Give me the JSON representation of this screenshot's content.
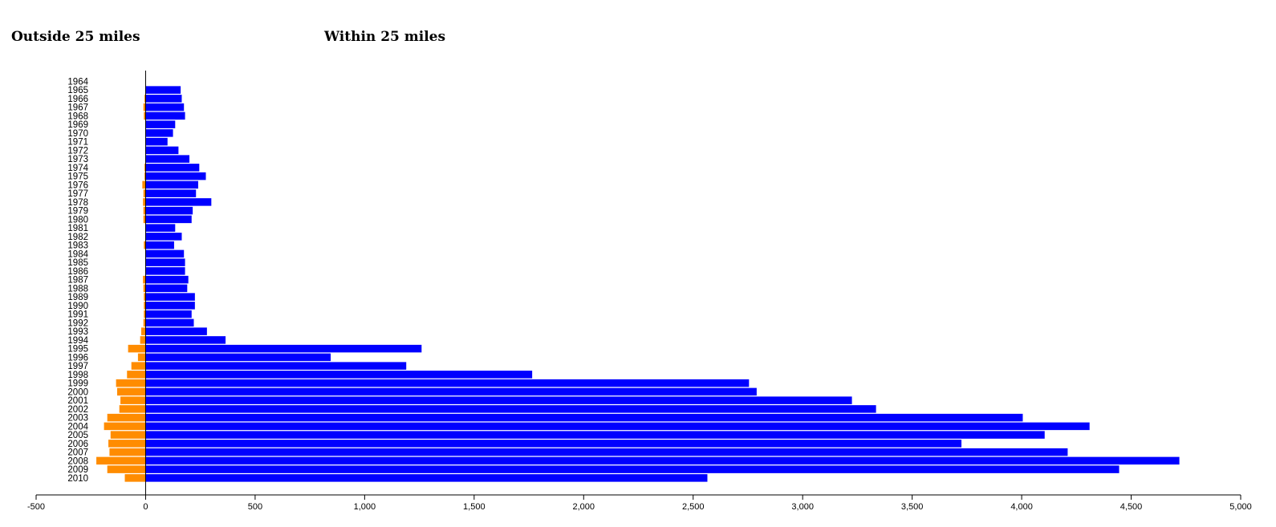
{
  "headings": {
    "left": "Outside 25 miles",
    "right": "Within 25 miles"
  },
  "chart_data": {
    "type": "bar",
    "orientation": "horizontal",
    "categories": [
      "1964",
      "1965",
      "1966",
      "1967",
      "1968",
      "1969",
      "1970",
      "1971",
      "1972",
      "1973",
      "1974",
      "1975",
      "1976",
      "1977",
      "1978",
      "1979",
      "1980",
      "1981",
      "1982",
      "1983",
      "1984",
      "1985",
      "1986",
      "1987",
      "1988",
      "1989",
      "1990",
      "1991",
      "1992",
      "1993",
      "1994",
      "1995",
      "1996",
      "1997",
      "1998",
      "1999",
      "2000",
      "2001",
      "2002",
      "2003",
      "2004",
      "2005",
      "2006",
      "2007",
      "2008",
      "2009",
      "2010"
    ],
    "series": [
      {
        "name": "Outside 25 miles",
        "color": "#ff8c00",
        "values": [
          0,
          0,
          -5,
          -10,
          -8,
          0,
          0,
          0,
          0,
          0,
          -5,
          -5,
          -15,
          -10,
          -12,
          -10,
          -10,
          0,
          0,
          -8,
          0,
          0,
          0,
          -12,
          -10,
          -8,
          -8,
          -8,
          -10,
          -20,
          -25,
          -80,
          -35,
          -65,
          -85,
          -135,
          -130,
          -115,
          -120,
          -175,
          -190,
          -160,
          -170,
          -165,
          -225,
          -175,
          -95
        ]
      },
      {
        "name": "Within 25 miles",
        "color": "#0000ff",
        "values": [
          0,
          160,
          165,
          175,
          180,
          135,
          125,
          100,
          150,
          200,
          245,
          275,
          240,
          230,
          300,
          215,
          210,
          135,
          165,
          130,
          175,
          180,
          180,
          195,
          190,
          225,
          225,
          210,
          220,
          280,
          365,
          1260,
          845,
          1190,
          1765,
          2755,
          2790,
          3225,
          3335,
          4005,
          4310,
          4105,
          3725,
          4210,
          4720,
          4445,
          2565
        ]
      }
    ],
    "xlim": [
      -500,
      5000
    ],
    "xticks": [
      {
        "value": -500,
        "label": "-500"
      },
      {
        "value": 0,
        "label": "0"
      },
      {
        "value": 500,
        "label": "500"
      },
      {
        "value": 1000,
        "label": "1,000"
      },
      {
        "value": 1500,
        "label": "1,500"
      },
      {
        "value": 2000,
        "label": "2,000"
      },
      {
        "value": 2500,
        "label": "2,500"
      },
      {
        "value": 3000,
        "label": "3,000"
      },
      {
        "value": 3500,
        "label": "3,500"
      },
      {
        "value": 4000,
        "label": "4,000"
      },
      {
        "value": 4500,
        "label": "4,500"
      },
      {
        "value": 5000,
        "label": "5,000"
      }
    ],
    "xlabel": "",
    "ylabel": "",
    "grid": false,
    "legend": "none"
  }
}
